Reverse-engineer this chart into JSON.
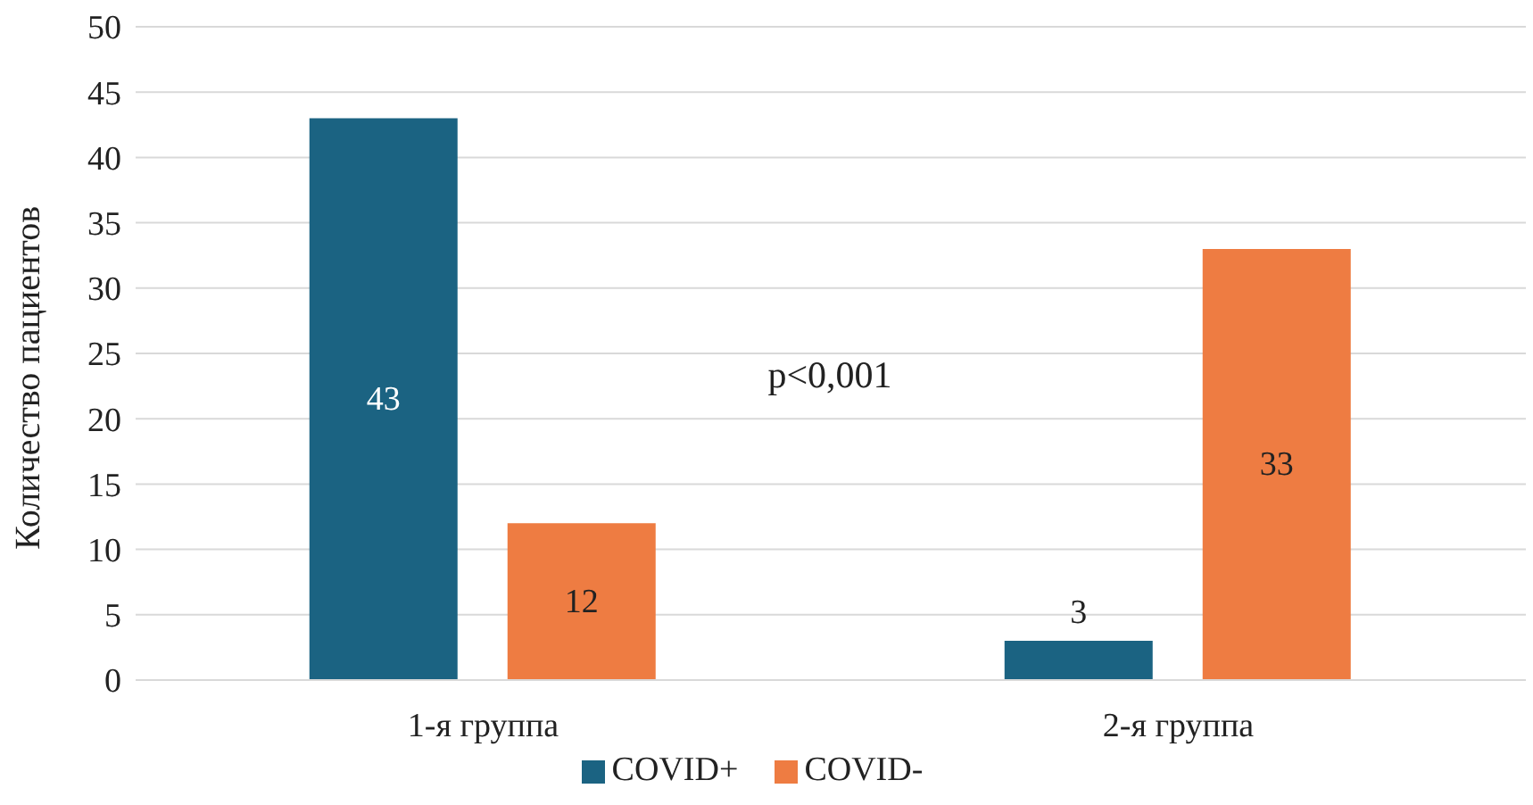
{
  "chart_data": {
    "type": "bar",
    "ylabel": "Количество пациентов",
    "categories": [
      "1-я группа",
      "2-я группа"
    ],
    "series": [
      {
        "name": "COVID+",
        "color": "#1b6382",
        "values": [
          43,
          3
        ]
      },
      {
        "name": "COVID-",
        "color": "#ee7c42",
        "values": [
          12,
          33
        ]
      }
    ],
    "ylim": [
      0,
      50
    ],
    "yticks": [
      0,
      5,
      10,
      15,
      20,
      25,
      30,
      35,
      40,
      45,
      50
    ],
    "grid": "y",
    "legend": "bottom",
    "data_labels": true,
    "annotations": [
      "p<0,001"
    ]
  }
}
